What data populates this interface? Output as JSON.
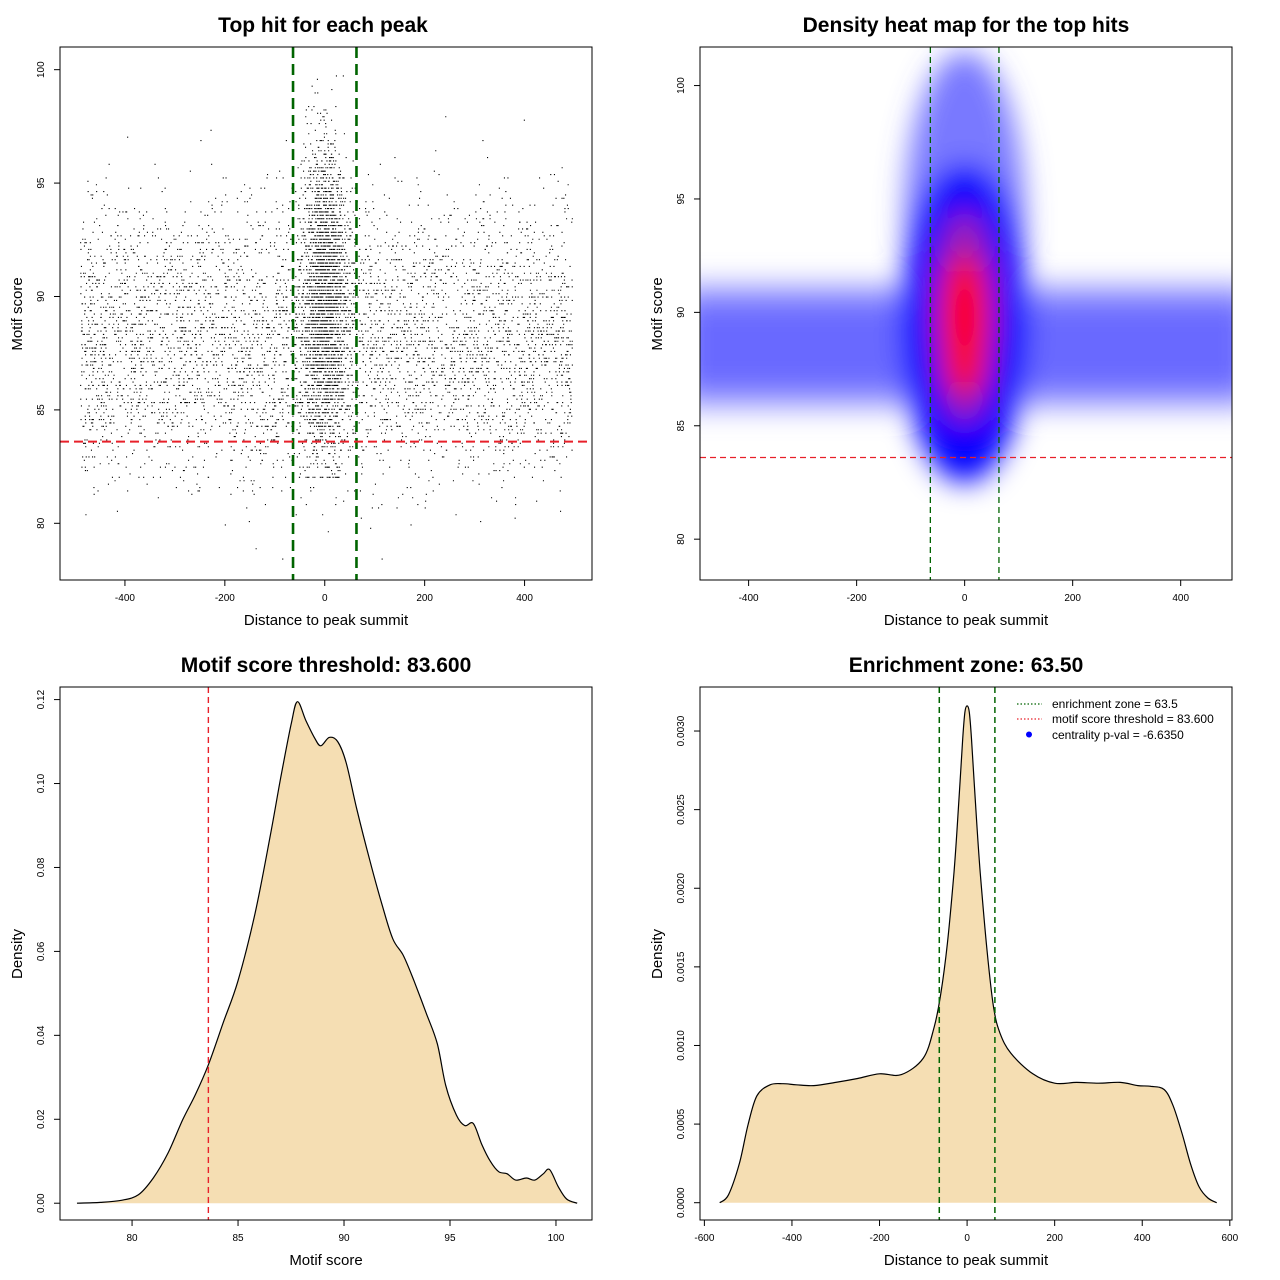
{
  "chart_data": [
    {
      "type": "scatter",
      "title": "Top hit for each peak",
      "xlabel": "Distance to peak summit",
      "ylabel": "Motif score",
      "xlim": [
        -530,
        535
      ],
      "ylim": [
        77.5,
        101
      ],
      "xticks": [
        -400,
        -200,
        0,
        200,
        400
      ],
      "xtick_labels": [
        "-400",
        "-200",
        "0",
        "200",
        "400"
      ],
      "yticks": [
        80,
        85,
        90,
        95,
        100
      ],
      "ytick_labels": [
        "80",
        "85",
        "90",
        "95",
        "100"
      ],
      "enrichment_zone_lines_x": [
        -63.5,
        63.5
      ],
      "threshold_line_y": 83.6,
      "points_description_range_x": [
        -490,
        495
      ],
      "points_center_x": 0,
      "points_mode_y": 88.5,
      "colors": {
        "points": "#000000",
        "zone": "#006400",
        "threshold": "#e8202a"
      }
    },
    {
      "type": "heatmap",
      "title": "Density heat map for the top hits",
      "xlabel": "Distance to peak summit",
      "ylabel": "Motif score",
      "xlim": [
        -490,
        495
      ],
      "ylim": [
        78.2,
        101.7
      ],
      "xticks": [
        -400,
        -200,
        0,
        200,
        400
      ],
      "xtick_labels": [
        "-400",
        "-200",
        "0",
        "200",
        "400"
      ],
      "yticks": [
        80,
        85,
        90,
        95,
        100
      ],
      "ytick_labels": [
        "80",
        "85",
        "90",
        "95",
        "100"
      ],
      "enrichment_zone_lines_x": [
        -63.5,
        63.5
      ],
      "threshold_line_y": 83.6,
      "hotspot_center": [
        0,
        89.8
      ],
      "colors": {
        "low": "#ffffff",
        "mid": "#0000ff",
        "high": "#ff0000",
        "zone": "#006400",
        "threshold": "#e8202a"
      }
    },
    {
      "type": "area",
      "title": "Motif score threshold: 83.600",
      "xlabel": "Motif score",
      "ylabel": "Density",
      "xlim": [
        76.6,
        101.7
      ],
      "ylim": [
        -0.004,
        0.123
      ],
      "xticks": [
        80,
        85,
        90,
        95,
        100
      ],
      "xtick_labels": [
        "80",
        "85",
        "90",
        "95",
        "100"
      ],
      "yticks": [
        0,
        0.02,
        0.04,
        0.06,
        0.08,
        0.1,
        0.12
      ],
      "ytick_labels": [
        "0.00",
        "0.02",
        "0.04",
        "0.06",
        "0.08",
        "0.10",
        "0.12"
      ],
      "threshold_line_x": 83.6,
      "x": [
        77.4,
        78.5,
        79.5,
        80.3,
        81.0,
        81.7,
        82.4,
        83.0,
        83.6,
        84.3,
        85.0,
        85.8,
        86.5,
        87.0,
        87.5,
        87.8,
        88.2,
        88.6,
        88.9,
        89.3,
        89.7,
        90.1,
        90.6,
        91.2,
        91.8,
        92.3,
        92.8,
        93.3,
        93.9,
        94.4,
        94.8,
        95.3,
        95.7,
        96.1,
        96.5,
        96.9,
        97.3,
        97.7,
        98.1,
        98.6,
        99.0,
        99.4,
        99.7,
        100.1,
        100.5,
        101.0
      ],
      "y": [
        0.0,
        0.0002,
        0.0007,
        0.002,
        0.006,
        0.012,
        0.02,
        0.026,
        0.033,
        0.043,
        0.053,
        0.069,
        0.087,
        0.101,
        0.114,
        0.1195,
        0.115,
        0.111,
        0.109,
        0.111,
        0.11,
        0.105,
        0.094,
        0.082,
        0.071,
        0.063,
        0.059,
        0.053,
        0.045,
        0.038,
        0.028,
        0.021,
        0.0185,
        0.019,
        0.014,
        0.01,
        0.0075,
        0.007,
        0.0055,
        0.006,
        0.0055,
        0.007,
        0.008,
        0.004,
        0.001,
        0.0
      ],
      "colors": {
        "fill": "#f5deb3",
        "line": "#000000",
        "threshold": "#e8202a"
      }
    },
    {
      "type": "area",
      "title": "Enrichment zone: 63.50",
      "xlabel": "Distance to peak summit",
      "ylabel": "Density",
      "xlim": [
        -610,
        605
      ],
      "ylim": [
        -0.00011,
        0.00328
      ],
      "xticks": [
        -600,
        -400,
        -200,
        0,
        200,
        400,
        600
      ],
      "xtick_labels": [
        "-600",
        "-400",
        "-200",
        "0",
        "200",
        "400",
        "600"
      ],
      "yticks": [
        0,
        0.0005,
        0.001,
        0.0015,
        0.002,
        0.0025,
        0.003
      ],
      "ytick_labels": [
        "0.0000",
        "0.0005",
        "0.0010",
        "0.0015",
        "0.0020",
        "0.0025",
        "0.0030"
      ],
      "enrichment_zone_lines_x": [
        -63.5,
        63.5
      ],
      "x": [
        -565,
        -545,
        -520,
        -500,
        -480,
        -450,
        -420,
        -390,
        -350,
        -300,
        -250,
        -200,
        -150,
        -100,
        -75,
        -60,
        -45,
        -30,
        -20,
        -10,
        -5,
        0,
        5,
        10,
        20,
        30,
        45,
        60,
        75,
        100,
        150,
        200,
        250,
        300,
        350,
        390,
        420,
        450,
        470,
        490,
        510,
        530,
        550,
        570
      ],
      "y": [
        0.0,
        5e-05,
        0.00025,
        0.0005,
        0.00068,
        0.00075,
        0.000757,
        0.00075,
        0.000745,
        0.000765,
        0.00079,
        0.00082,
        0.000815,
        0.00092,
        0.00112,
        0.00133,
        0.00165,
        0.0021,
        0.0025,
        0.00295,
        0.00312,
        0.00316,
        0.00312,
        0.00295,
        0.0025,
        0.0021,
        0.00162,
        0.00125,
        0.00108,
        0.00095,
        0.00082,
        0.00076,
        0.000765,
        0.00076,
        0.000765,
        0.000745,
        0.00074,
        0.00072,
        0.00062,
        0.00045,
        0.00025,
        0.0001,
        3e-05,
        0.0
      ],
      "legend": [
        {
          "label": "enrichment zone = 63.5",
          "marker": "dotted-line",
          "color": "#006400"
        },
        {
          "label": "motif score threshold = 83.600",
          "marker": "dotted-line",
          "color": "#e8202a"
        },
        {
          "label": "centrality p-val = -6.6350",
          "marker": "dot",
          "color": "#0000ff"
        }
      ],
      "legend_position": "top-right",
      "colors": {
        "fill": "#f5deb3",
        "line": "#000000",
        "zone": "#006400"
      }
    }
  ]
}
